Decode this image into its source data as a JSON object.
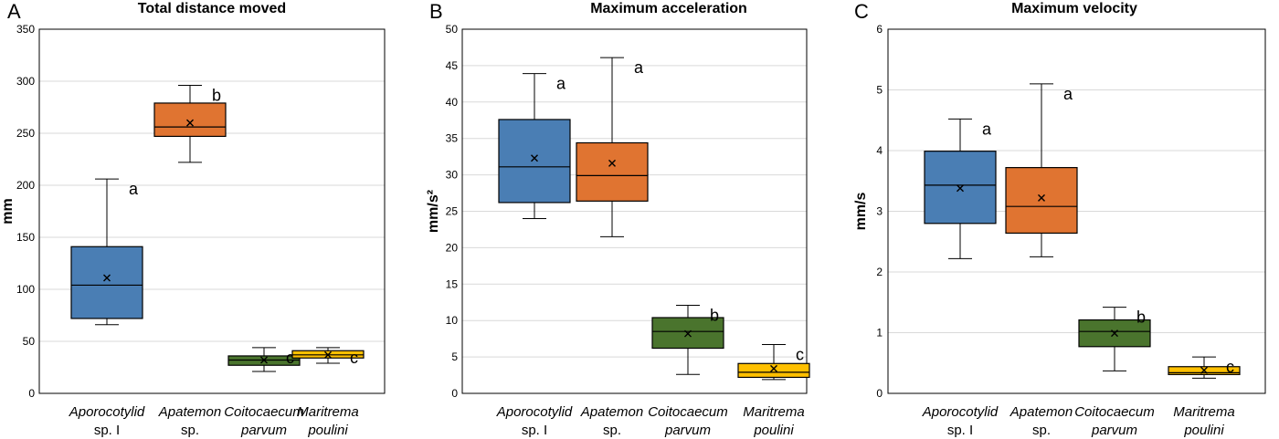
{
  "colors": {
    "Aporocotylid sp. I": "#4a7eb4",
    "Apatemon sp.": "#e07431",
    "Coitocaecum parvum": "#4a742d",
    "Maritrema poulini": "#ffc000"
  },
  "chart_data": [
    {
      "type": "box",
      "panel": "A",
      "title": "Total distance moved",
      "ylabel": "mm",
      "ylim": [
        0,
        350
      ],
      "yticks": [
        "0",
        "50",
        "100",
        "150",
        "200",
        "250",
        "300",
        "350"
      ],
      "categories": [
        {
          "line1": "Aporocotylid",
          "line2": "sp. I"
        },
        {
          "line1": "Apatemon",
          "line2": "sp."
        },
        {
          "line1": "Coitocaecum",
          "line2": "parvum"
        },
        {
          "line1": "Maritrema",
          "line2": "poulini"
        }
      ],
      "boxes": [
        {
          "group": "Aporocotylid sp. I",
          "min": 66,
          "q1": 72,
          "median": 104,
          "q3": 141,
          "max": 206,
          "mean": 111,
          "letter": "a"
        },
        {
          "group": "Apatemon sp.",
          "min": 222,
          "q1": 247,
          "median": 256,
          "q3": 279,
          "max": 296,
          "mean": 260,
          "letter": "b"
        },
        {
          "group": "Coitocaecum parvum",
          "min": 21,
          "q1": 27,
          "median": 32,
          "q3": 36,
          "max": 44,
          "mean": 32,
          "letter": "c"
        },
        {
          "group": "Maritrema poulini",
          "min": 29,
          "q1": 34,
          "median": 37,
          "q3": 41,
          "max": 44,
          "mean": 37,
          "letter": "c"
        }
      ]
    },
    {
      "type": "box",
      "panel": "B",
      "title": "Maximum acceleration",
      "ylabel": "mm/s²",
      "ylim": [
        0,
        50
      ],
      "yticks": [
        "0",
        "5",
        "10",
        "15",
        "20",
        "25",
        "30",
        "35",
        "40",
        "45",
        "50"
      ],
      "categories": [
        {
          "line1": "Aporocotylid",
          "line2": "sp. I"
        },
        {
          "line1": "Apatemon",
          "line2": "sp."
        },
        {
          "line1": "Coitocaecum",
          "line2": "parvum"
        },
        {
          "line1": "Maritrema",
          "line2": "poulini"
        }
      ],
      "boxes": [
        {
          "group": "Aporocotylid sp. I",
          "min": 24.0,
          "q1": 26.2,
          "median": 31.1,
          "q3": 37.6,
          "max": 43.9,
          "mean": 32.3,
          "letter": "a"
        },
        {
          "group": "Apatemon sp.",
          "min": 21.5,
          "q1": 26.4,
          "median": 29.9,
          "q3": 34.4,
          "max": 46.1,
          "mean": 31.6,
          "letter": "a"
        },
        {
          "group": "Coitocaecum parvum",
          "min": 2.6,
          "q1": 6.2,
          "median": 8.5,
          "q3": 10.4,
          "max": 12.1,
          "mean": 8.2,
          "letter": "b"
        },
        {
          "group": "Maritrema poulini",
          "min": 1.9,
          "q1": 2.2,
          "median": 2.9,
          "q3": 4.1,
          "max": 6.7,
          "mean": 3.4,
          "letter": "c"
        }
      ]
    },
    {
      "type": "box",
      "panel": "C",
      "title": "Maximum velocity",
      "ylabel": "mm/s",
      "ylim": [
        0,
        6
      ],
      "yticks": [
        "0",
        "1",
        "2",
        "3",
        "4",
        "5",
        "6"
      ],
      "categories": [
        {
          "line1": "Aporocotylid",
          "line2": "sp. I"
        },
        {
          "line1": "Apatemon",
          "line2": "sp."
        },
        {
          "line1": "Coitocaecum",
          "line2": "parvum"
        },
        {
          "line1": "Maritrema",
          "line2": "poulini"
        }
      ],
      "boxes": [
        {
          "group": "Aporocotylid sp. I",
          "min": 2.22,
          "q1": 2.8,
          "median": 3.43,
          "q3": 3.99,
          "max": 4.52,
          "mean": 3.38,
          "letter": "a"
        },
        {
          "group": "Apatemon sp.",
          "min": 2.25,
          "q1": 2.64,
          "median": 3.08,
          "q3": 3.72,
          "max": 5.1,
          "mean": 3.22,
          "letter": "a"
        },
        {
          "group": "Coitocaecum parvum",
          "min": 0.37,
          "q1": 0.77,
          "median": 1.02,
          "q3": 1.21,
          "max": 1.42,
          "mean": 0.99,
          "letter": "b"
        },
        {
          "group": "Maritrema poulini",
          "min": 0.25,
          "q1": 0.31,
          "median": 0.34,
          "q3": 0.44,
          "max": 0.6,
          "mean": 0.38,
          "letter": "c"
        }
      ]
    }
  ]
}
